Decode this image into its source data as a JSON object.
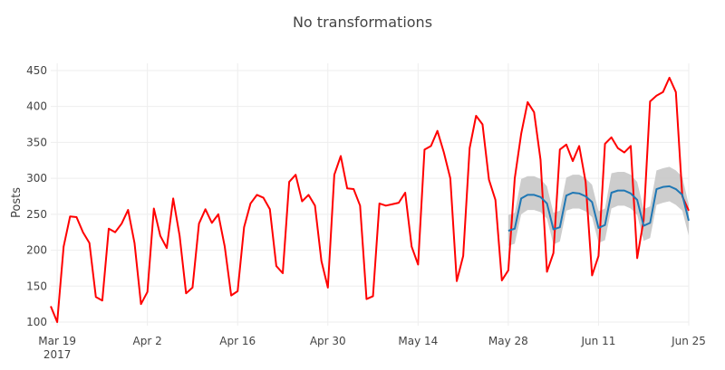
{
  "chart_data": {
    "type": "line",
    "title": "No transformations",
    "xlabel": "",
    "ylabel": "Posts",
    "x_start": "2017-03-18",
    "x_end": "2017-06-25",
    "ylim": [
      95,
      460
    ],
    "y_ticks": [
      100,
      150,
      200,
      250,
      300,
      350,
      400,
      450
    ],
    "x_ticks": [
      {
        "date": "2017-03-19",
        "label": "Mar 19",
        "sublabel": "2017"
      },
      {
        "date": "2017-04-02",
        "label": "Apr 2"
      },
      {
        "date": "2017-04-16",
        "label": "Apr 16"
      },
      {
        "date": "2017-04-30",
        "label": "Apr 30"
      },
      {
        "date": "2017-05-14",
        "label": "May 14"
      },
      {
        "date": "2017-05-28",
        "label": "May 28"
      },
      {
        "date": "2017-06-11",
        "label": "Jun 11"
      },
      {
        "date": "2017-06-25",
        "label": "Jun 25"
      }
    ],
    "grid": true,
    "colors": {
      "actual": "#ff0000",
      "forecast": "#1f77b4",
      "interval": "#c8c8c8"
    },
    "series": [
      {
        "role": "actual",
        "x": [
          "2017-03-18",
          "2017-03-19",
          "2017-03-20",
          "2017-03-21",
          "2017-03-22",
          "2017-03-23",
          "2017-03-24",
          "2017-03-25",
          "2017-03-26",
          "2017-03-27",
          "2017-03-28",
          "2017-03-29",
          "2017-03-30",
          "2017-03-31",
          "2017-04-01",
          "2017-04-02",
          "2017-04-03",
          "2017-04-04",
          "2017-04-05",
          "2017-04-06",
          "2017-04-07",
          "2017-04-08",
          "2017-04-09",
          "2017-04-10",
          "2017-04-11",
          "2017-04-12",
          "2017-04-13",
          "2017-04-14",
          "2017-04-15",
          "2017-04-16",
          "2017-04-17",
          "2017-04-18",
          "2017-04-19",
          "2017-04-20",
          "2017-04-21",
          "2017-04-22",
          "2017-04-23",
          "2017-04-24",
          "2017-04-25",
          "2017-04-26",
          "2017-04-27",
          "2017-04-28",
          "2017-04-29",
          "2017-04-30",
          "2017-05-01",
          "2017-05-02",
          "2017-05-03",
          "2017-05-04",
          "2017-05-05",
          "2017-05-06",
          "2017-05-07",
          "2017-05-08",
          "2017-05-09",
          "2017-05-10",
          "2017-05-11",
          "2017-05-12",
          "2017-05-13",
          "2017-05-14",
          "2017-05-15",
          "2017-05-16",
          "2017-05-17",
          "2017-05-18",
          "2017-05-19",
          "2017-05-20",
          "2017-05-21",
          "2017-05-22",
          "2017-05-23",
          "2017-05-24",
          "2017-05-25",
          "2017-05-26",
          "2017-05-27",
          "2017-05-28",
          "2017-05-29",
          "2017-05-30",
          "2017-05-31",
          "2017-06-01",
          "2017-06-02",
          "2017-06-03",
          "2017-06-04",
          "2017-06-05",
          "2017-06-06",
          "2017-06-07",
          "2017-06-08",
          "2017-06-09",
          "2017-06-10",
          "2017-06-11",
          "2017-06-12",
          "2017-06-13",
          "2017-06-14",
          "2017-06-15",
          "2017-06-16",
          "2017-06-17",
          "2017-06-18",
          "2017-06-19",
          "2017-06-20",
          "2017-06-21",
          "2017-06-22",
          "2017-06-23",
          "2017-06-24",
          "2017-06-25"
        ],
        "values": [
          122,
          100,
          205,
          247,
          246,
          225,
          210,
          135,
          130,
          230,
          225,
          237,
          256,
          210,
          125,
          142,
          258,
          220,
          203,
          272,
          220,
          140,
          148,
          237,
          257,
          238,
          250,
          205,
          137,
          143,
          232,
          265,
          277,
          273,
          257,
          178,
          168,
          295,
          305,
          268,
          277,
          262,
          185,
          148,
          305,
          331,
          286,
          285,
          262,
          132,
          136,
          265,
          262,
          264,
          266,
          280,
          205,
          180,
          340,
          345,
          366,
          336,
          300,
          157,
          192,
          342,
          387,
          375,
          298,
          270,
          158,
          172,
          300,
          362,
          406,
          392,
          326,
          170,
          196,
          340,
          347,
          324,
          345,
          295,
          165,
          192,
          348,
          357,
          342,
          336,
          345,
          189,
          242,
          407,
          415,
          420,
          440,
          420,
          275,
          255
        ]
      },
      {
        "role": "forecast",
        "x": [
          "2017-05-28",
          "2017-05-29",
          "2017-05-30",
          "2017-05-31",
          "2017-06-01",
          "2017-06-02",
          "2017-06-03",
          "2017-06-04",
          "2017-06-05",
          "2017-06-06",
          "2017-06-07",
          "2017-06-08",
          "2017-06-09",
          "2017-06-10",
          "2017-06-11",
          "2017-06-12",
          "2017-06-13",
          "2017-06-14",
          "2017-06-15",
          "2017-06-16",
          "2017-06-17",
          "2017-06-18",
          "2017-06-19",
          "2017-06-20",
          "2017-06-21",
          "2017-06-22",
          "2017-06-23",
          "2017-06-24",
          "2017-06-25"
        ],
        "values": [
          227,
          230,
          272,
          277,
          277,
          274,
          265,
          229,
          232,
          276,
          280,
          279,
          275,
          267,
          231,
          235,
          280,
          283,
          283,
          279,
          270,
          234,
          238,
          285,
          288,
          289,
          285,
          277,
          241
        ],
        "lower": [
          206,
          209,
          250,
          256,
          256,
          253,
          244,
          208,
          212,
          255,
          258,
          258,
          254,
          246,
          210,
          214,
          258,
          262,
          262,
          258,
          249,
          213,
          217,
          263,
          266,
          268,
          263,
          255,
          220
        ],
        "upper": [
          249,
          252,
          299,
          303,
          303,
          299,
          289,
          252,
          255,
          301,
          305,
          305,
          300,
          291,
          254,
          258,
          307,
          309,
          309,
          305,
          295,
          257,
          261,
          311,
          314,
          316,
          311,
          302,
          263
        ]
      }
    ]
  }
}
